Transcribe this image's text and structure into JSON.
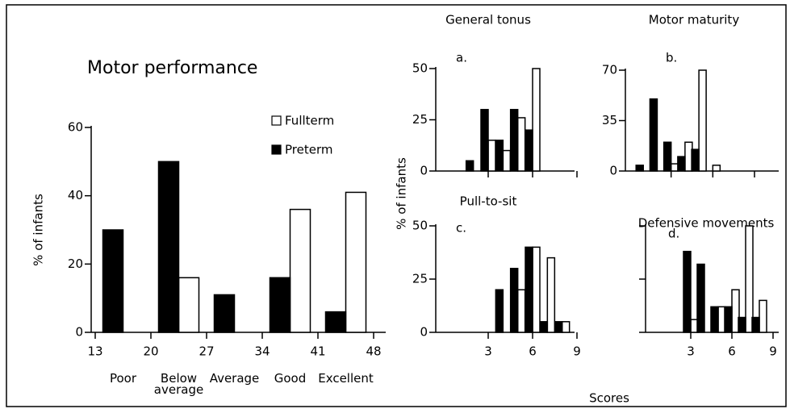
{
  "ylabel_shared": "% of infants",
  "xlabel_shared": "Scores",
  "chart_data": [
    {
      "type": "bar",
      "title": "Motor performance",
      "ylabel": "% of infants",
      "categories": [
        "Poor",
        "Below average",
        "Average",
        "Good",
        "Excellent"
      ],
      "xlim": [
        13,
        48
      ],
      "xticks": [
        13,
        20,
        27,
        34,
        41,
        48
      ],
      "ylim": [
        0,
        60
      ],
      "yticks": [
        0,
        20,
        40,
        60
      ],
      "legend": "upper right",
      "series": [
        {
          "name": "Fullterm",
          "color": "#ffffff",
          "values": [
            0,
            16,
            0,
            36,
            41
          ]
        },
        {
          "name": "Preterm",
          "color": "#000000",
          "values": [
            30,
            50,
            11,
            16,
            6
          ]
        }
      ]
    },
    {
      "type": "bar",
      "title": "General tonus",
      "panel_label": "a.",
      "x": [
        2,
        3,
        4,
        5,
        6
      ],
      "xlim": [
        0,
        9
      ],
      "xticks": [
        3,
        6,
        9
      ],
      "xtick_labels": false,
      "ylim": [
        0,
        50
      ],
      "yticks": [
        0,
        25,
        50
      ],
      "ytick_labels": true,
      "series": [
        {
          "name": "Fullterm",
          "color": "#ffffff",
          "values": [
            0,
            15,
            10,
            26,
            50
          ]
        },
        {
          "name": "Preterm",
          "color": "#000000",
          "values": [
            5,
            30,
            15,
            30,
            20
          ]
        }
      ]
    },
    {
      "type": "bar",
      "title": "Motor maturity",
      "panel_label": "b.",
      "x": [
        1,
        2,
        3,
        4,
        5,
        6
      ],
      "xlim": [
        0,
        9
      ],
      "xticks": [
        3,
        6,
        9
      ],
      "xtick_labels": false,
      "ylim": [
        0,
        70
      ],
      "yticks": [
        0,
        35,
        70
      ],
      "ytick_labels": true,
      "series": [
        {
          "name": "Fullterm",
          "color": "#ffffff",
          "values": [
            0,
            0,
            5,
            20,
            70,
            4
          ]
        },
        {
          "name": "Preterm",
          "color": "#000000",
          "values": [
            4,
            50,
            20,
            10,
            15,
            0
          ]
        }
      ]
    },
    {
      "type": "bar",
      "title": "Pull-to-sit",
      "panel_label": "c.",
      "x": [
        4,
        5,
        6,
        7,
        8
      ],
      "xlim": [
        0,
        9
      ],
      "xticks": [
        3,
        6,
        9
      ],
      "xtick_labels": true,
      "ylim": [
        0,
        50
      ],
      "yticks": [
        0,
        25,
        50
      ],
      "ytick_labels": true,
      "series": [
        {
          "name": "Fullterm",
          "color": "#ffffff",
          "values": [
            0,
            20,
            40,
            35,
            5
          ]
        },
        {
          "name": "Preterm",
          "color": "#000000",
          "values": [
            20,
            30,
            40,
            5,
            5
          ]
        }
      ]
    },
    {
      "type": "bar",
      "title": "Defensive movements",
      "panel_label": "d.",
      "x": [
        3,
        4,
        5,
        6,
        7,
        8
      ],
      "xlim": [
        0,
        9
      ],
      "xticks": [
        3,
        6,
        9
      ],
      "xtick_labels": true,
      "ylim": [
        0,
        50
      ],
      "yticks": [
        0,
        25,
        50
      ],
      "ytick_labels": false,
      "series": [
        {
          "name": "Fullterm",
          "color": "#ffffff",
          "values": [
            6,
            0,
            12,
            20,
            50,
            15
          ]
        },
        {
          "name": "Preterm",
          "color": "#000000",
          "values": [
            38,
            32,
            12,
            12,
            7,
            7
          ]
        }
      ]
    }
  ]
}
